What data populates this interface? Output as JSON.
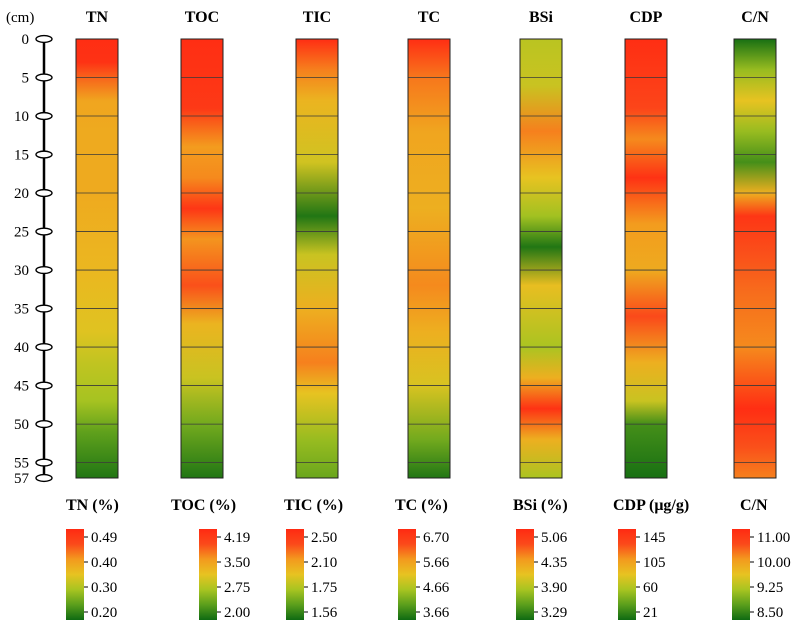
{
  "chart_data": {
    "type": "heatmap",
    "depth_axis": {
      "unit_label": "(cm)",
      "ticks": [
        "0",
        "5",
        "10",
        "15",
        "20",
        "25",
        "30",
        "35",
        "40",
        "45",
        "50",
        "55",
        "57"
      ]
    },
    "columns": [
      {
        "name": "TN",
        "legend_title": "TN (%)",
        "legend_ticks": [
          "0.49",
          "0.40",
          "0.30",
          "0.20"
        ],
        "profile": [
          {
            "depth": 0,
            "v": 0.98
          },
          {
            "depth": 3,
            "v": 0.96
          },
          {
            "depth": 5,
            "v": 0.78
          },
          {
            "depth": 8,
            "v": 0.62
          },
          {
            "depth": 12,
            "v": 0.6
          },
          {
            "depth": 20,
            "v": 0.6
          },
          {
            "depth": 30,
            "v": 0.55
          },
          {
            "depth": 38,
            "v": 0.48
          },
          {
            "depth": 42,
            "v": 0.4
          },
          {
            "depth": 47,
            "v": 0.33
          },
          {
            "depth": 51,
            "v": 0.18
          },
          {
            "depth": 57,
            "v": 0.04
          }
        ]
      },
      {
        "name": "TOC",
        "legend_title": "TOC (%)",
        "legend_ticks": [
          "4.19",
          "3.50",
          "2.75",
          "2.00"
        ],
        "profile": [
          {
            "depth": 0,
            "v": 0.98
          },
          {
            "depth": 9,
            "v": 0.92
          },
          {
            "depth": 14,
            "v": 0.66
          },
          {
            "depth": 18,
            "v": 0.7
          },
          {
            "depth": 22,
            "v": 0.94
          },
          {
            "depth": 26,
            "v": 0.68
          },
          {
            "depth": 32,
            "v": 0.82
          },
          {
            "depth": 37,
            "v": 0.56
          },
          {
            "depth": 44,
            "v": 0.42
          },
          {
            "depth": 50,
            "v": 0.22
          },
          {
            "depth": 57,
            "v": 0.04
          }
        ]
      },
      {
        "name": "TIC",
        "legend_title": "TIC (%)",
        "legend_ticks": [
          "2.50",
          "2.10",
          "1.75",
          "1.56"
        ],
        "profile": [
          {
            "depth": 0,
            "v": 0.98
          },
          {
            "depth": 4,
            "v": 0.72
          },
          {
            "depth": 8,
            "v": 0.56
          },
          {
            "depth": 16,
            "v": 0.44
          },
          {
            "depth": 23,
            "v": 0.04
          },
          {
            "depth": 28,
            "v": 0.42
          },
          {
            "depth": 35,
            "v": 0.58
          },
          {
            "depth": 42,
            "v": 0.72
          },
          {
            "depth": 46,
            "v": 0.5
          },
          {
            "depth": 52,
            "v": 0.3
          },
          {
            "depth": 57,
            "v": 0.2
          }
        ]
      },
      {
        "name": "TC",
        "legend_title": "TC (%)",
        "legend_ticks": [
          "6.70",
          "5.66",
          "4.66",
          "3.66"
        ],
        "profile": [
          {
            "depth": 0,
            "v": 0.98
          },
          {
            "depth": 5,
            "v": 0.74
          },
          {
            "depth": 12,
            "v": 0.62
          },
          {
            "depth": 22,
            "v": 0.58
          },
          {
            "depth": 32,
            "v": 0.7
          },
          {
            "depth": 38,
            "v": 0.58
          },
          {
            "depth": 45,
            "v": 0.46
          },
          {
            "depth": 52,
            "v": 0.22
          },
          {
            "depth": 57,
            "v": 0.04
          }
        ]
      },
      {
        "name": "BSi",
        "legend_title": "BSi (%)",
        "legend_ticks": [
          "5.06",
          "4.35",
          "3.90",
          "3.29"
        ],
        "profile": [
          {
            "depth": 0,
            "v": 0.38
          },
          {
            "depth": 6,
            "v": 0.42
          },
          {
            "depth": 12,
            "v": 0.72
          },
          {
            "depth": 18,
            "v": 0.5
          },
          {
            "depth": 23,
            "v": 0.32
          },
          {
            "depth": 27,
            "v": 0.04
          },
          {
            "depth": 32,
            "v": 0.52
          },
          {
            "depth": 40,
            "v": 0.34
          },
          {
            "depth": 44,
            "v": 0.58
          },
          {
            "depth": 48,
            "v": 0.96
          },
          {
            "depth": 52,
            "v": 0.58
          },
          {
            "depth": 57,
            "v": 0.34
          }
        ]
      },
      {
        "name": "CDP",
        "legend_title": "CDP (μg/g)",
        "legend_ticks": [
          "145",
          "105",
          "60",
          "21"
        ],
        "profile": [
          {
            "depth": 0,
            "v": 0.98
          },
          {
            "depth": 9,
            "v": 0.86
          },
          {
            "depth": 13,
            "v": 0.7
          },
          {
            "depth": 18,
            "v": 0.96
          },
          {
            "depth": 24,
            "v": 0.66
          },
          {
            "depth": 30,
            "v": 0.6
          },
          {
            "depth": 36,
            "v": 0.84
          },
          {
            "depth": 42,
            "v": 0.58
          },
          {
            "depth": 47,
            "v": 0.42
          },
          {
            "depth": 50,
            "v": 0.12
          },
          {
            "depth": 57,
            "v": 0.02
          }
        ]
      },
      {
        "name": "C/N",
        "legend_title": "C/N",
        "legend_ticks": [
          "11.00",
          "10.00",
          "9.25",
          "8.50"
        ],
        "profile": [
          {
            "depth": 0,
            "v": 0.02
          },
          {
            "depth": 4,
            "v": 0.3
          },
          {
            "depth": 8,
            "v": 0.5
          },
          {
            "depth": 12,
            "v": 0.3
          },
          {
            "depth": 16,
            "v": 0.12
          },
          {
            "depth": 20,
            "v": 0.58
          },
          {
            "depth": 23,
            "v": 0.94
          },
          {
            "depth": 28,
            "v": 0.82
          },
          {
            "depth": 33,
            "v": 0.76
          },
          {
            "depth": 40,
            "v": 0.7
          },
          {
            "depth": 48,
            "v": 0.98
          },
          {
            "depth": 53,
            "v": 0.82
          },
          {
            "depth": 57,
            "v": 0.72
          }
        ]
      }
    ],
    "colormap": [
      "#0f6a12",
      "#5a9e1c",
      "#a8c421",
      "#e7c321",
      "#f39a1e",
      "#fb4a1a",
      "#ff2a12"
    ],
    "depth_range": [
      0,
      57
    ]
  }
}
